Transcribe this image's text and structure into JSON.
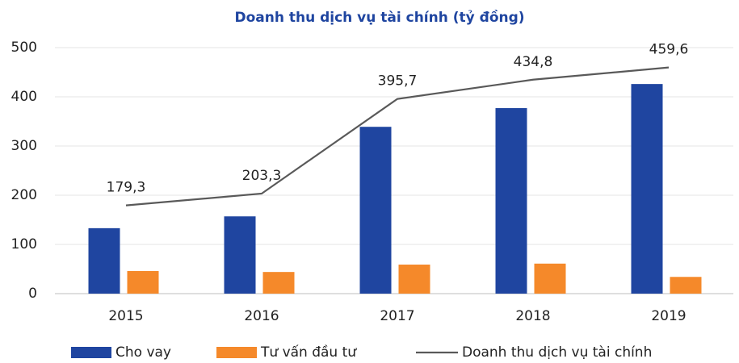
{
  "chart_data": {
    "type": "bar_line",
    "title": "Doanh thu dịch vụ tài chính (tỷ đồng)",
    "categories": [
      "2015",
      "2016",
      "2017",
      "2018",
      "2019"
    ],
    "series": [
      {
        "name": "Cho vay",
        "color": "#1f45a0",
        "type": "bar",
        "values": [
          133,
          157,
          339,
          377,
          426
        ]
      },
      {
        "name": "Tư vấn đầu tư",
        "color": "#f5892a",
        "type": "bar",
        "values": [
          46,
          44,
          59,
          61,
          34
        ]
      },
      {
        "name": "Doanh thu dịch vụ tài chính",
        "color": "#595959",
        "type": "line",
        "values": [
          179.3,
          203.3,
          395.7,
          434.8,
          459.6
        ],
        "value_labels": [
          "179,3",
          "203,3",
          "395,7",
          "434,8",
          "459,6"
        ]
      }
    ],
    "ylim": [
      0,
      500
    ],
    "yticks": [
      0,
      100,
      200,
      300,
      400,
      500
    ],
    "grid": true,
    "legend": "bottom"
  }
}
